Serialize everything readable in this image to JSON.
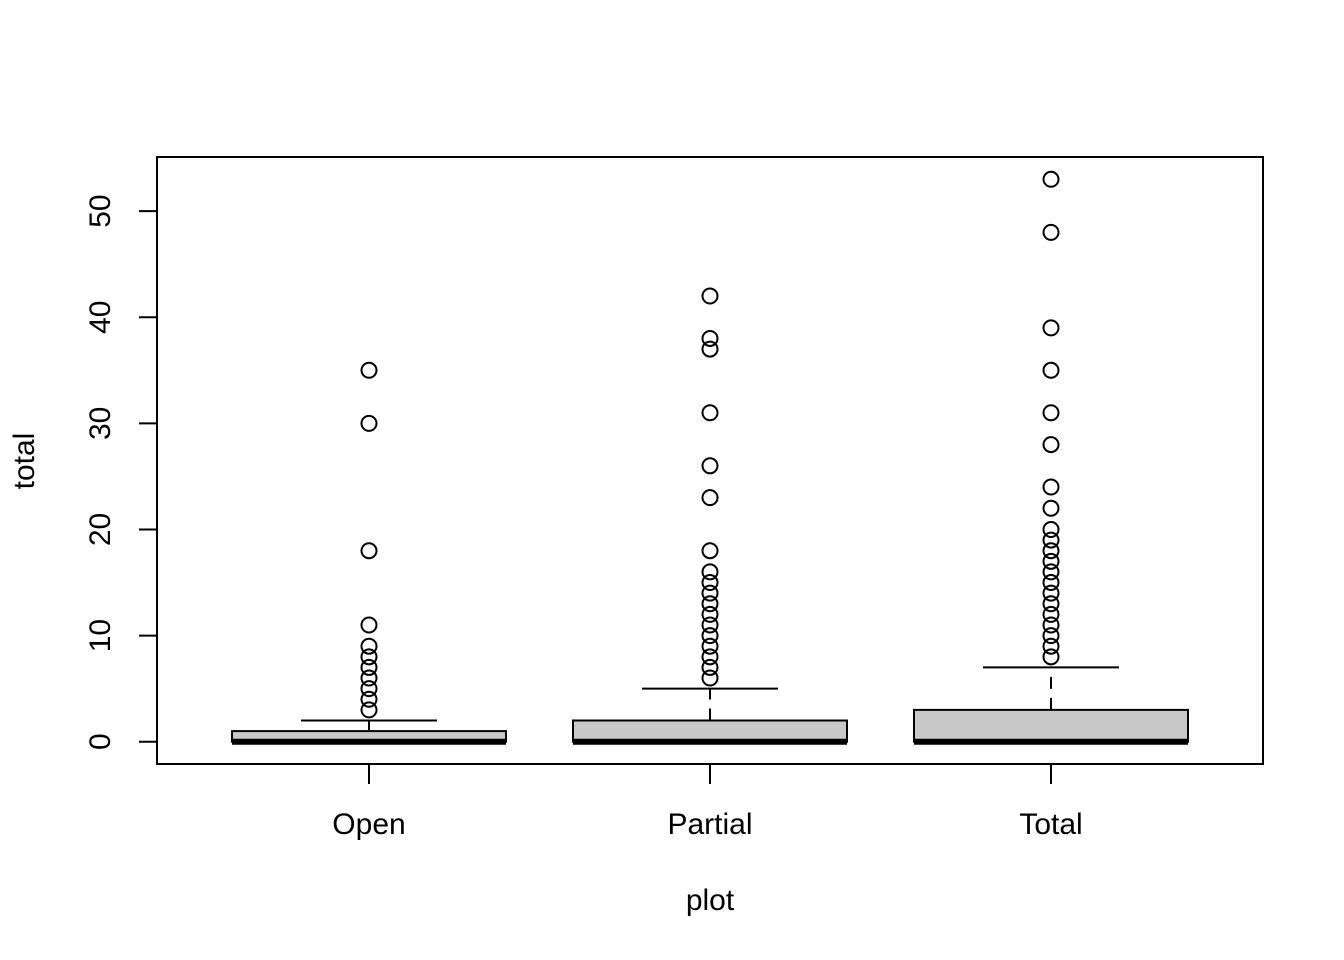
{
  "chart_data": {
    "type": "boxplot",
    "xlabel": "plot",
    "ylabel": "total",
    "ylim": [
      -2.1,
      55.1
    ],
    "y_ticks": [
      0,
      10,
      20,
      30,
      40,
      50
    ],
    "y_tick_labels": [
      "0",
      "10",
      "20",
      "30",
      "40",
      "50"
    ],
    "grid": false,
    "legend": "none",
    "box_fill": "#c8c8c8",
    "line_color": "#000000",
    "categories": [
      "Open",
      "Partial",
      "Total"
    ],
    "boxes": [
      {
        "category": "Open",
        "whisker_low": 0,
        "q1": 0,
        "median": 0,
        "q3": 1,
        "whisker_high": 2,
        "outliers": [
          3,
          4,
          5,
          6,
          7,
          8,
          9,
          11,
          18,
          30,
          35
        ]
      },
      {
        "category": "Partial",
        "whisker_low": 0,
        "q1": 0,
        "median": 0,
        "q3": 2,
        "whisker_high": 5,
        "outliers": [
          6,
          7,
          8,
          9,
          10,
          11,
          12,
          13,
          14,
          15,
          16,
          18,
          23,
          26,
          31,
          37,
          38,
          42
        ]
      },
      {
        "category": "Total",
        "whisker_low": 0,
        "q1": 0,
        "median": 0,
        "q3": 3,
        "whisker_high": 7,
        "outliers": [
          8,
          9,
          10,
          11,
          12,
          13,
          14,
          15,
          16,
          17,
          18,
          19,
          20,
          22,
          24,
          28,
          31,
          35,
          39,
          48,
          53
        ]
      }
    ]
  }
}
